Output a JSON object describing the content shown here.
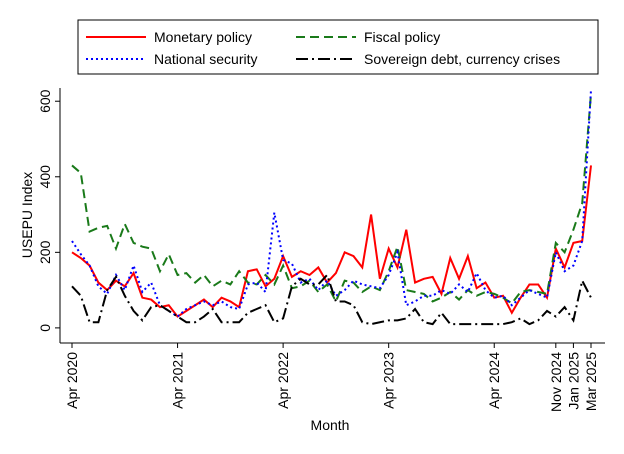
{
  "chart_data": {
    "type": "line",
    "y_label": "USEPU Index",
    "x_label": "Month",
    "categories": [
      "Apr 2020",
      null,
      null,
      null,
      null,
      null,
      null,
      null,
      null,
      null,
      null,
      null,
      "Apr 2021",
      null,
      null,
      null,
      null,
      null,
      null,
      null,
      null,
      null,
      null,
      null,
      "Apr 2022",
      null,
      null,
      null,
      null,
      null,
      null,
      null,
      null,
      null,
      null,
      null,
      "Apr 2023",
      null,
      null,
      null,
      null,
      null,
      null,
      null,
      null,
      null,
      null,
      null,
      "Apr 2024",
      null,
      null,
      null,
      null,
      null,
      null,
      "Nov 2024",
      null,
      "Jan 2025",
      null,
      "Mar 2025"
    ],
    "series": [
      {
        "name": "Monetary policy",
        "color": "#ff0000",
        "line_style": "solid",
        "values": [
          200,
          185,
          165,
          120,
          100,
          125,
          110,
          145,
          80,
          75,
          55,
          60,
          30,
          45,
          60,
          75,
          55,
          80,
          70,
          55,
          150,
          155,
          110,
          130,
          190,
          135,
          150,
          140,
          160,
          120,
          145,
          200,
          190,
          160,
          300,
          130,
          210,
          160,
          260,
          120,
          130,
          135,
          90,
          185,
          130,
          190,
          105,
          120,
          80,
          85,
          40,
          80,
          115,
          115,
          80,
          210,
          160,
          225,
          230,
          430
        ]
      },
      {
        "name": "Fiscal policy",
        "color": "#1a7a1a",
        "line_style": "dashed",
        "values": [
          430,
          410,
          255,
          265,
          270,
          210,
          275,
          225,
          215,
          210,
          150,
          195,
          140,
          145,
          120,
          140,
          110,
          125,
          115,
          150,
          120,
          115,
          140,
          115,
          165,
          105,
          110,
          125,
          95,
          115,
          70,
          125,
          120,
          95,
          110,
          100,
          150,
          215,
          100,
          95,
          90,
          70,
          80,
          95,
          75,
          100,
          85,
          95,
          90,
          80,
          65,
          95,
          100,
          95,
          90,
          225,
          200,
          260,
          330,
          620
        ]
      },
      {
        "name": "National security",
        "color": "#0000ff",
        "line_style": "dotted",
        "values": [
          230,
          195,
          165,
          110,
          90,
          140,
          100,
          165,
          95,
          120,
          60,
          45,
          30,
          50,
          60,
          70,
          60,
          70,
          55,
          50,
          115,
          120,
          95,
          305,
          180,
          170,
          120,
          130,
          100,
          125,
          85,
          100,
          125,
          115,
          110,
          105,
          140,
          200,
          60,
          70,
          85,
          85,
          100,
          90,
          115,
          95,
          145,
          100,
          80,
          85,
          60,
          80,
          100,
          90,
          80,
          200,
          150,
          165,
          230,
          630
        ]
      },
      {
        "name": "Sovereign debt, currency crises",
        "color": "#000000",
        "line_style": "dashdot",
        "values": [
          110,
          85,
          15,
          15,
          100,
          135,
          85,
          45,
          20,
          55,
          60,
          45,
          30,
          15,
          15,
          30,
          50,
          15,
          15,
          15,
          40,
          50,
          60,
          15,
          25,
          110,
          130,
          115,
          115,
          140,
          70,
          70,
          60,
          15,
          10,
          15,
          20,
          20,
          25,
          50,
          15,
          10,
          40,
          10,
          10,
          10,
          10,
          10,
          10,
          10,
          15,
          25,
          10,
          20,
          45,
          30,
          55,
          20,
          125,
          80
        ]
      }
    ],
    "ylim": [
      -40,
      635
    ],
    "yticks": [
      0,
      200,
      400,
      600
    ],
    "grid": false,
    "legend": "top"
  }
}
